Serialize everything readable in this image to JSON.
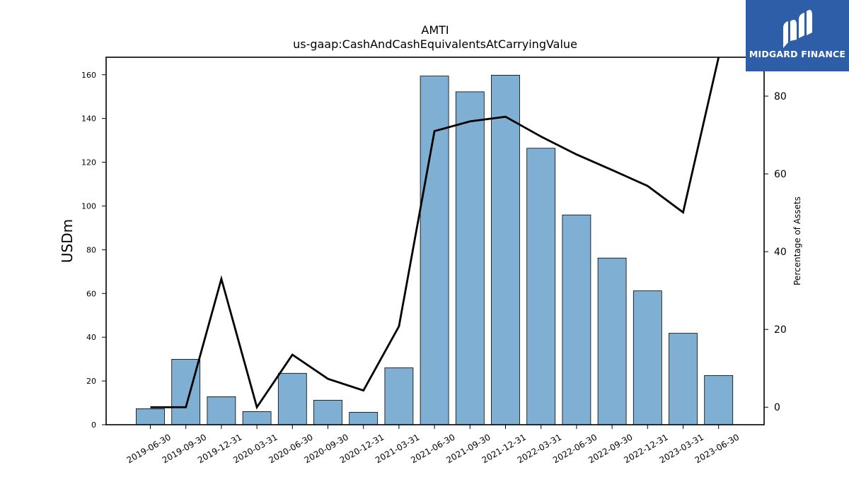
{
  "logo": {
    "name": "MIDGARD FINANCE",
    "bg_color": "#2f5ea8"
  },
  "chart_data": {
    "type": "bar",
    "title": "AMTI",
    "subtitle": "us-gaap:CashAndCashEquivalentsAtCarryingValue",
    "xlabel": "",
    "ylabel": "USDm",
    "y2label": "Percentage of Assets",
    "categories": [
      "2019-06-30",
      "2019-09-30",
      "2019-12-31",
      "2020-03-31",
      "2020-06-30",
      "2020-09-30",
      "2020-12-31",
      "2021-03-31",
      "2021-06-30",
      "2021-09-30",
      "2021-12-31",
      "2022-03-31",
      "2022-06-30",
      "2022-09-30",
      "2022-12-31",
      "2023-03-31",
      "2023-06-30"
    ],
    "ylim": [
      0,
      168
    ],
    "y2lim": [
      -4.5,
      90
    ],
    "yticks": [
      0,
      20,
      40,
      60,
      80,
      100,
      120,
      140,
      160
    ],
    "y2ticks": [
      0,
      20,
      40,
      60,
      80
    ],
    "grid": false,
    "bar_color": "#7fb0d4",
    "line_color": "#000000",
    "series": [
      {
        "type": "bar",
        "axis": "left",
        "values": [
          7.3,
          29.9,
          12.8,
          6.0,
          23.5,
          11.2,
          5.7,
          26.0,
          159.4,
          152.2,
          159.8,
          126.4,
          95.9,
          76.2,
          61.2,
          41.8,
          22.5
        ]
      },
      {
        "type": "line",
        "axis": "right",
        "values": [
          0.0,
          0.0,
          33.0,
          0.0,
          13.5,
          7.3,
          4.3,
          20.8,
          71.0,
          73.5,
          74.7,
          69.6,
          65.0,
          61.0,
          56.9,
          50.1,
          90.0
        ]
      }
    ]
  }
}
